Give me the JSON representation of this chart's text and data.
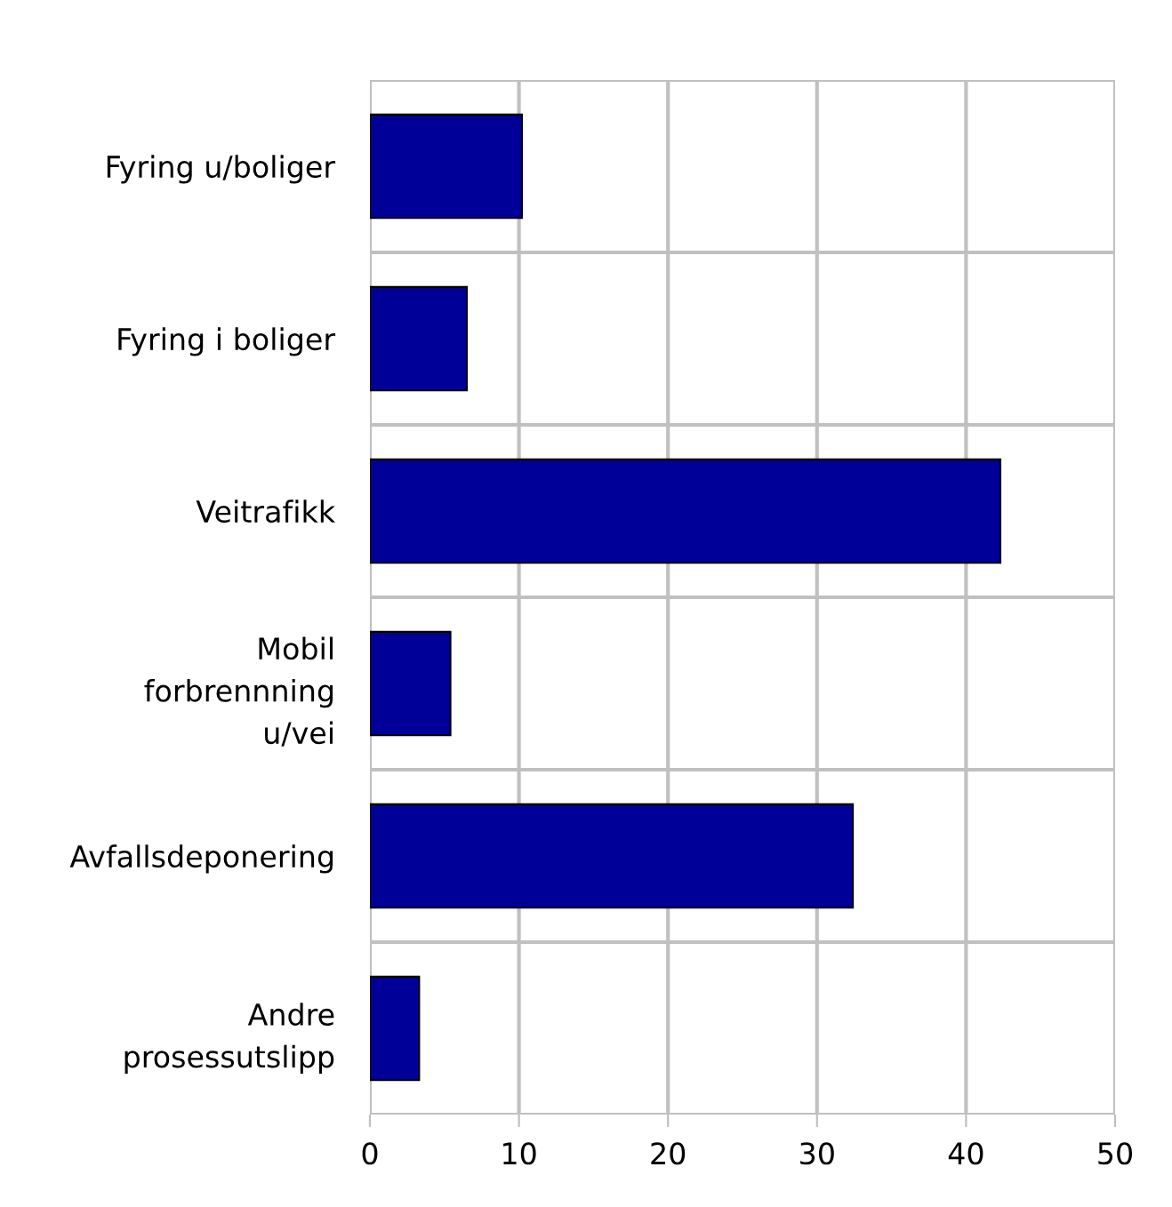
{
  "chart_data": {
    "type": "bar",
    "orientation": "horizontal",
    "categories": [
      "Fyring u/boliger",
      "Fyring i boliger",
      "Veitrafikk",
      "Mobil\nforbrennning\nu/vei",
      "Avfallsdeponering",
      "Andre\nprosessutslipp"
    ],
    "values": [
      10.2,
      6.5,
      42.3,
      5.4,
      32.4,
      3.3
    ],
    "color": "#000099",
    "xlim": [
      0,
      50
    ],
    "xticks": [
      0,
      10,
      20,
      30,
      40,
      50
    ],
    "grid": true,
    "legend": false
  }
}
